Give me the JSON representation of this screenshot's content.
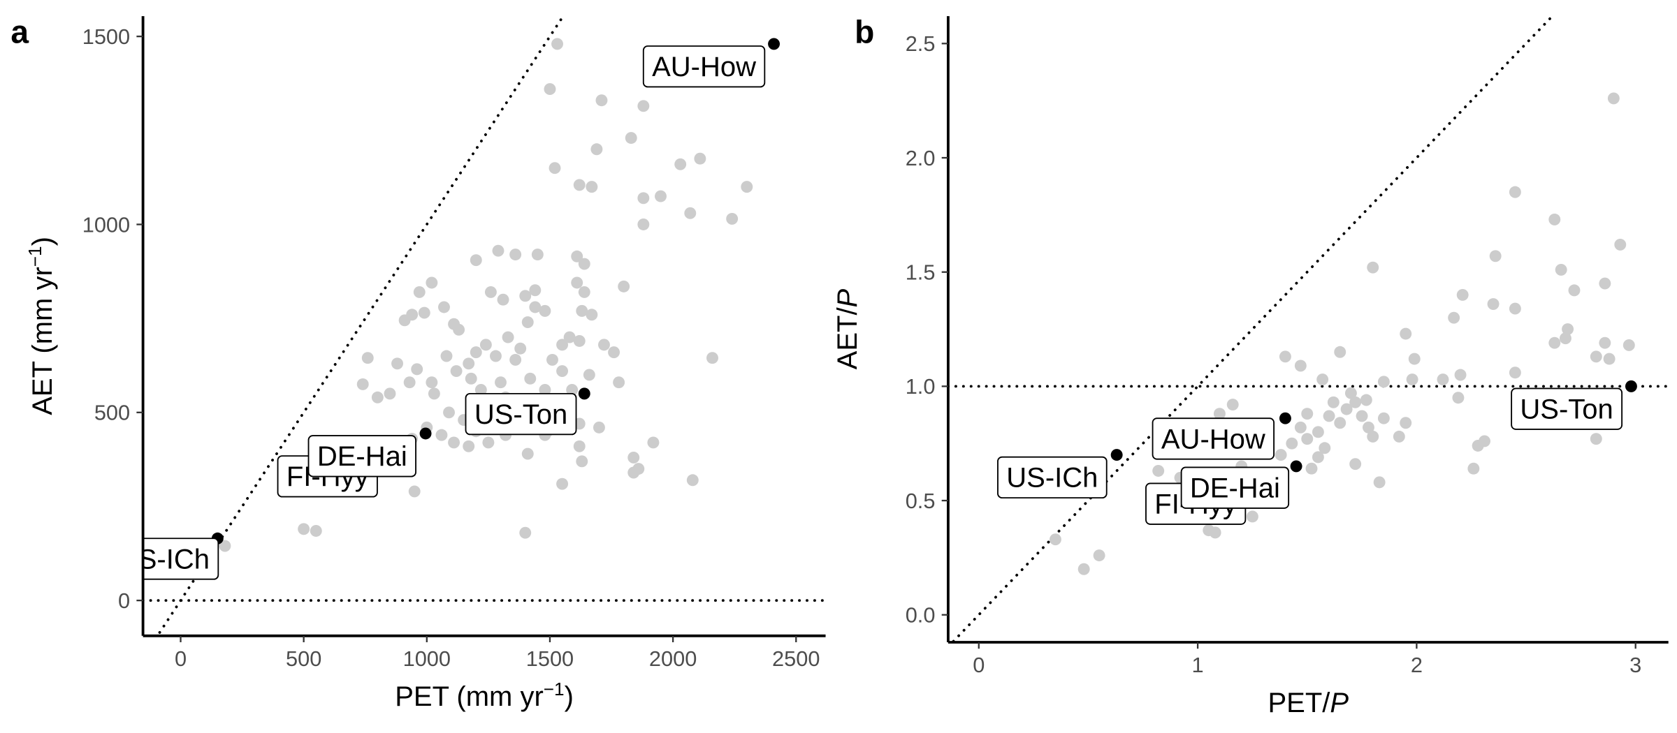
{
  "chart_data": [
    {
      "type": "scatter",
      "panel": "a",
      "x_label": [
        "PET (mm yr",
        "−1",
        ")"
      ],
      "y_label": [
        "AET (mm yr",
        "−1",
        ")"
      ],
      "xlim": [
        -153,
        2620
      ],
      "ylim": [
        -94,
        1554
      ],
      "xticks": [
        0,
        500,
        1000,
        1500,
        2000,
        2500
      ],
      "yticks": [
        0,
        500,
        1000,
        1500
      ],
      "hlines": [
        0
      ],
      "identity_line": true,
      "point_color": "#cccccc",
      "highlight_color": "#000000",
      "x": [
        1530,
        1500,
        1710,
        1880,
        1830,
        1690,
        1520,
        1620,
        1670,
        2030,
        2110,
        2300,
        2240,
        1880,
        1950,
        2070,
        1880,
        1200,
        1290,
        1360,
        1450,
        1610,
        1640,
        1020,
        970,
        910,
        940,
        990,
        1070,
        1110,
        1130,
        1260,
        1310,
        1400,
        1440,
        1440,
        1480,
        1410,
        1610,
        1640,
        1630,
        1670,
        1580,
        1550,
        1620,
        1720,
        1800,
        1760,
        760,
        740,
        880,
        800,
        850,
        930,
        960,
        1020,
        1030,
        1080,
        1120,
        1170,
        1200,
        1240,
        1280,
        1330,
        1380,
        1360,
        1180,
        1220,
        1300,
        1320,
        1420,
        1480,
        1510,
        1550,
        1590,
        1660,
        1780,
        2160,
        1090,
        1150,
        1200,
        1260,
        1330,
        1390,
        1440,
        1490,
        1560,
        1620,
        1700,
        1060,
        1110,
        1170,
        1250,
        1320,
        1410,
        1480,
        1620,
        1630,
        1840,
        1860,
        1920,
        1840,
        2080,
        1550,
        920,
        950,
        880,
        830,
        500,
        550,
        1400,
        180,
        1000,
        940
      ],
      "y": [
        1480,
        1360,
        1330,
        1315,
        1230,
        1200,
        1150,
        1105,
        1100,
        1160,
        1175,
        1100,
        1015,
        1070,
        1075,
        1030,
        1000,
        905,
        930,
        920,
        920,
        915,
        895,
        845,
        820,
        745,
        760,
        765,
        780,
        735,
        720,
        820,
        800,
        810,
        825,
        780,
        770,
        740,
        845,
        820,
        770,
        760,
        700,
        680,
        690,
        680,
        835,
        660,
        645,
        575,
        630,
        540,
        550,
        580,
        615,
        580,
        550,
        650,
        610,
        630,
        660,
        680,
        650,
        700,
        670,
        640,
        590,
        560,
        580,
        540,
        590,
        560,
        640,
        610,
        560,
        600,
        580,
        645,
        500,
        480,
        450,
        470,
        500,
        460,
        480,
        450,
        500,
        470,
        460,
        440,
        420,
        410,
        420,
        440,
        390,
        440,
        410,
        370,
        380,
        350,
        420,
        340,
        320,
        310,
        410,
        290,
        400,
        385,
        190,
        185,
        180,
        145,
        460,
        430
      ],
      "highlight": {
        "labels": [
          "AU-How",
          "US-Ton",
          "FI-Hyy",
          "DE-Hai",
          "US-ICh"
        ],
        "x": [
          2410,
          1640,
          850,
          995,
          150
        ],
        "y": [
          1480,
          550,
          410,
          444,
          165
        ]
      }
    },
    {
      "type": "scatter",
      "panel": "b",
      "x_label": [
        "PET/",
        "P",
        ""
      ],
      "y_label": [
        "AET/",
        "P",
        ""
      ],
      "xlim": [
        -0.14,
        3.15
      ],
      "ylim": [
        -0.12,
        2.62
      ],
      "xticks": [
        0,
        1,
        2,
        3
      ],
      "yticks": [
        {
          "value": 0,
          "label": "0.0"
        },
        0.5,
        {
          "value": 1,
          "label": "1.0"
        },
        1.5,
        {
          "value": 2,
          "label": "2.0"
        },
        2.5
      ],
      "hlines": [
        1
      ],
      "identity_line": true,
      "point_color": "#cccccc",
      "highlight_color": "#000000",
      "x": [
        2.9,
        2.45,
        2.63,
        2.93,
        2.36,
        1.8,
        2.66,
        2.86,
        2.72,
        2.21,
        2.35,
        2.45,
        2.17,
        2.69,
        1.95,
        2.63,
        2.68,
        2.86,
        2.97,
        1.65,
        1.4,
        1.99,
        1.47,
        2.88,
        2.82,
        2.45,
        2.2,
        1.98,
        2.12,
        1.57,
        1.85,
        1.7,
        1.62,
        1.72,
        1.77,
        2.19,
        1.68,
        1.5,
        1.6,
        1.75,
        1.85,
        1.78,
        1.65,
        1.95,
        1.92,
        1.8,
        1.55,
        1.47,
        1.5,
        1.58,
        1.43,
        1.32,
        1.26,
        1.2,
        1.1,
        1.16,
        1.05,
        2.26,
        2.28,
        2.31,
        2.82,
        1.72,
        1.83,
        1.55,
        1.52,
        1.3,
        1.2,
        1.05,
        0.92,
        0.82,
        1.15,
        1.25,
        1.05,
        1.08,
        0.35,
        0.55,
        0.48,
        1.35,
        1.38,
        1.1
      ],
      "y": [
        2.26,
        1.85,
        1.73,
        1.62,
        1.57,
        1.52,
        1.51,
        1.45,
        1.42,
        1.4,
        1.36,
        1.34,
        1.3,
        1.25,
        1.23,
        1.19,
        1.21,
        1.19,
        1.18,
        1.15,
        1.13,
        1.12,
        1.09,
        1.12,
        1.13,
        1.06,
        1.05,
        1.03,
        1.03,
        1.03,
        1.02,
        0.97,
        0.93,
        0.93,
        0.94,
        0.95,
        0.9,
        0.88,
        0.87,
        0.87,
        0.86,
        0.82,
        0.84,
        0.84,
        0.78,
        0.78,
        0.8,
        0.82,
        0.77,
        0.73,
        0.75,
        0.77,
        0.74,
        0.8,
        0.88,
        0.92,
        0.8,
        0.64,
        0.74,
        0.76,
        0.77,
        0.66,
        0.58,
        0.69,
        0.64,
        0.6,
        0.65,
        0.62,
        0.6,
        0.63,
        0.5,
        0.43,
        0.37,
        0.36,
        0.33,
        0.26,
        0.2,
        0.55,
        0.7,
        0.72
      ],
      "highlight": {
        "labels": [
          "AU-How",
          "US-Ton",
          "FI-Hyy",
          "DE-Hai",
          "US-ICh"
        ],
        "x": [
          1.4,
          2.98,
          1.3,
          1.45,
          0.63
        ],
        "y": [
          0.86,
          1.0,
          0.5,
          0.65,
          0.7
        ]
      }
    }
  ]
}
